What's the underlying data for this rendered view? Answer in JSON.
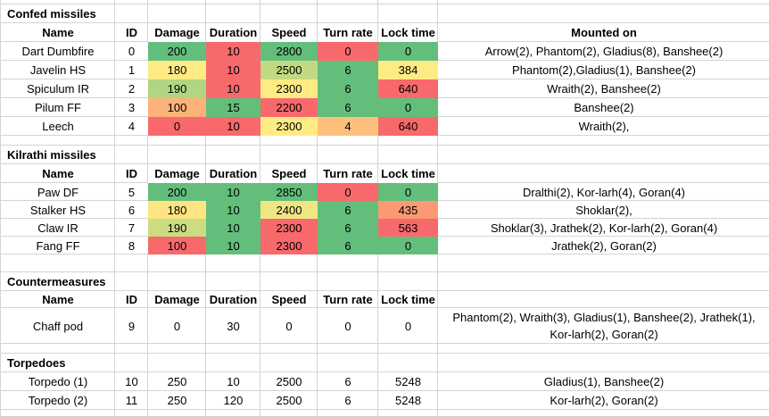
{
  "app": {
    "kind": "spreadsheet-weapon-stats"
  },
  "palette": {
    "gridline": "#d4d4d4",
    "background": "#ffffff",
    "text": "#000000",
    "scale_green": "#63BE7B",
    "scale_yellow": "#FFEB84",
    "scale_red": "#F8696B"
  },
  "column_labels": {
    "name": "Name",
    "id": "ID",
    "damage": "Damage",
    "duration": "Duration",
    "speed": "Speed",
    "turn": "Turn rate",
    "lock": "Lock time",
    "mounted": "Mounted on"
  },
  "sections": [
    {
      "title": "Confed missiles",
      "header": {
        "name": "Name",
        "id": "ID",
        "damage": "Damage",
        "duration": "Duration",
        "speed": "Speed",
        "turn": "Turn rate",
        "lock": "Lock time",
        "mounted": "Mounted on"
      },
      "rows": [
        {
          "name": "Dart Dumbfire",
          "id": "0",
          "damage": {
            "v": "200",
            "bg": "#63BE7B"
          },
          "duration": {
            "v": "10",
            "bg": "#F8696B"
          },
          "speed": {
            "v": "2800",
            "bg": "#63BE7B"
          },
          "turn": {
            "v": "0",
            "bg": "#F8696B"
          },
          "lock": {
            "v": "0",
            "bg": "#63BE7B"
          },
          "mounted": "Arrow(2), Phantom(2), Gladius(8), Banshee(2)"
        },
        {
          "name": "Javelin HS",
          "id": "1",
          "damage": {
            "v": "180",
            "bg": "#FFEB84"
          },
          "duration": {
            "v": "10",
            "bg": "#F8696B"
          },
          "speed": {
            "v": "2500",
            "bg": "#C1D981"
          },
          "turn": {
            "v": "6",
            "bg": "#63BE7B"
          },
          "lock": {
            "v": "384",
            "bg": "#FFEB84"
          },
          "mounted": "Phantom(2),Gladius(1), Banshee(2)"
        },
        {
          "name": "Spiculum IR",
          "id": "2",
          "damage": {
            "v": "190",
            "bg": "#B1D580"
          },
          "duration": {
            "v": "10",
            "bg": "#F8696B"
          },
          "speed": {
            "v": "2300",
            "bg": "#FFEB84"
          },
          "turn": {
            "v": "6",
            "bg": "#63BE7B"
          },
          "lock": {
            "v": "640",
            "bg": "#F8696B"
          },
          "mounted": "Wraith(2), Banshee(2)"
        },
        {
          "name": "Pilum FF",
          "id": "3",
          "damage": {
            "v": "100",
            "bg": "#FCB279"
          },
          "duration": {
            "v": "15",
            "bg": "#63BE7B"
          },
          "speed": {
            "v": "2200",
            "bg": "#F8696B"
          },
          "turn": {
            "v": "6",
            "bg": "#63BE7B"
          },
          "lock": {
            "v": "0",
            "bg": "#63BE7B"
          },
          "mounted": "Banshee(2)"
        },
        {
          "name": "Leech",
          "id": "4",
          "damage": {
            "v": "0",
            "bg": "#F8696B"
          },
          "duration": {
            "v": "10",
            "bg": "#F8696B"
          },
          "speed": {
            "v": "2300",
            "bg": "#FFEB84"
          },
          "turn": {
            "v": "4",
            "bg": "#FDC07C"
          },
          "lock": {
            "v": "640",
            "bg": "#F8696B"
          },
          "mounted": "Wraith(2),"
        }
      ]
    },
    {
      "title": "Kilrathi missiles",
      "header": {
        "name": "Name",
        "id": "ID",
        "damage": "Damage",
        "duration": "Duration",
        "speed": "Speed",
        "turn": "Turn rate",
        "lock": "Lock time",
        "mounted": ""
      },
      "rows": [
        {
          "name": "Paw DF",
          "id": "5",
          "damage": {
            "v": "200",
            "bg": "#63BE7B"
          },
          "duration": {
            "v": "10",
            "bg": "#63BE7B"
          },
          "speed": {
            "v": "2850",
            "bg": "#63BE7B"
          },
          "turn": {
            "v": "0",
            "bg": "#F8696B"
          },
          "lock": {
            "v": "0",
            "bg": "#63BE7B"
          },
          "mounted": "Dralthi(2), Kor-larh(4), Goran(4)"
        },
        {
          "name": "Stalker HS",
          "id": "6",
          "damage": {
            "v": "180",
            "bg": "#FFE483"
          },
          "duration": {
            "v": "10",
            "bg": "#63BE7B"
          },
          "speed": {
            "v": "2400",
            "bg": "#EFE683"
          },
          "turn": {
            "v": "6",
            "bg": "#63BE7B"
          },
          "lock": {
            "v": "435",
            "bg": "#FB9974"
          },
          "mounted": "Shoklar(2),"
        },
        {
          "name": "Claw IR",
          "id": "7",
          "damage": {
            "v": "190",
            "bg": "#CCDC81"
          },
          "duration": {
            "v": "10",
            "bg": "#63BE7B"
          },
          "speed": {
            "v": "2300",
            "bg": "#F8696B"
          },
          "turn": {
            "v": "6",
            "bg": "#63BE7B"
          },
          "lock": {
            "v": "563",
            "bg": "#F8696B"
          },
          "mounted": "Shoklar(3), Jrathek(2), Kor-larh(2), Goran(4)"
        },
        {
          "name": "Fang FF",
          "id": "8",
          "damage": {
            "v": "100",
            "bg": "#F8696B"
          },
          "duration": {
            "v": "10",
            "bg": "#63BE7B"
          },
          "speed": {
            "v": "2300",
            "bg": "#F8696B"
          },
          "turn": {
            "v": "6",
            "bg": "#63BE7B"
          },
          "lock": {
            "v": "0",
            "bg": "#63BE7B"
          },
          "mounted": "Jrathek(2), Goran(2)"
        }
      ]
    },
    {
      "title": "Countermeasures",
      "header": {
        "name": "Name",
        "id": "ID",
        "damage": "Damage",
        "duration": "Duration",
        "speed": "Speed",
        "turn": "Turn rate",
        "lock": "Lock time",
        "mounted": ""
      },
      "rows": [
        {
          "name": "Chaff pod",
          "id": "9",
          "damage": {
            "v": "0"
          },
          "duration": {
            "v": "30"
          },
          "speed": {
            "v": "0"
          },
          "turn": {
            "v": "0"
          },
          "lock": {
            "v": "0"
          },
          "mounted": "Phantom(2), Wraith(3), Gladius(1), Banshee(2), Jrathek(1), Kor-larh(2), Goran(2)"
        }
      ]
    },
    {
      "title": "Torpedoes",
      "rows": [
        {
          "name": "Torpedo (1)",
          "id": "10",
          "damage": {
            "v": "250"
          },
          "duration": {
            "v": "10"
          },
          "speed": {
            "v": "2500"
          },
          "turn": {
            "v": "6"
          },
          "lock": {
            "v": "5248"
          },
          "mounted": "Gladius(1), Banshee(2)"
        },
        {
          "name": "Torpedo (2)",
          "id": "11",
          "damage": {
            "v": "250"
          },
          "duration": {
            "v": "120"
          },
          "speed": {
            "v": "2500"
          },
          "turn": {
            "v": "6"
          },
          "lock": {
            "v": "5248"
          },
          "mounted": "Kor-larh(2), Goran(2)"
        }
      ]
    }
  ]
}
